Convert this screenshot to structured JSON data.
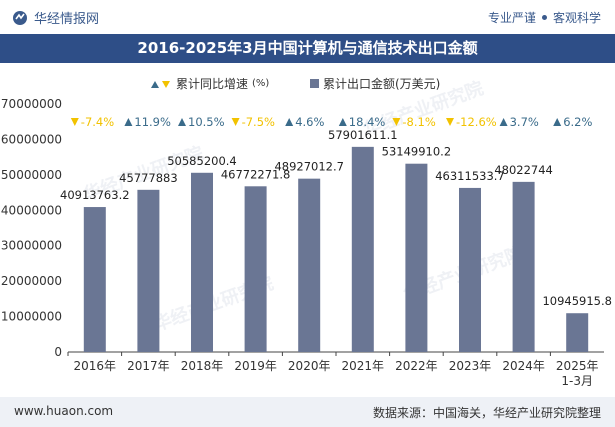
{
  "header": {
    "brand_name": "华经情报网",
    "tag_pro": "专业严谨",
    "tag_sci": "客观科学"
  },
  "title": "2016-2025年3月中国计算机与通信技术出口金额",
  "legend": {
    "growth_label": "累计同比增速",
    "growth_unit": "(%)",
    "amount_label": "累计出口金额(万美元)"
  },
  "chart_data": {
    "type": "bar",
    "title": "2016-2025年3月中国计算机与通信技术出口金额",
    "categories": [
      "2016年",
      "2017年",
      "2018年",
      "2019年",
      "2020年",
      "2021年",
      "2022年",
      "2023年",
      "2024年",
      "2025年 1-3月"
    ],
    "category_lines": [
      [
        "2016年"
      ],
      [
        "2017年"
      ],
      [
        "2018年"
      ],
      [
        "2019年"
      ],
      [
        "2020年"
      ],
      [
        "2021年"
      ],
      [
        "2022年"
      ],
      [
        "2023年"
      ],
      [
        "2024年"
      ],
      [
        "2025年",
        "1-3月"
      ]
    ],
    "series": [
      {
        "name": "累计出口金额(万美元)",
        "values": [
          40913763.2,
          45777883,
          50585200.4,
          46772271.8,
          48927012.7,
          57901611.1,
          53149910.2,
          46311533.7,
          48022744,
          10945915.8
        ],
        "labels": [
          "40913763.2",
          "45777883",
          "50585200.4",
          "46772271.8",
          "48927012.7",
          "57901611.1",
          "53149910.2",
          "46311533.7",
          "48022744",
          "10945915.8"
        ],
        "color": "#6a7694"
      },
      {
        "name": "累计同比增速(%)",
        "values": [
          -7.4,
          11.9,
          10.5,
          -7.5,
          4.6,
          18.4,
          -8.1,
          -12.6,
          3.7,
          6.2
        ],
        "labels": [
          "-7.4%",
          "11.9%",
          "10.5%",
          "-7.5%",
          "4.6%",
          "18.4%",
          "-8.1%",
          "-12.6%",
          "3.7%",
          "6.2%"
        ],
        "up_color": "#3a6b8a",
        "down_color": "#f2c200"
      }
    ],
    "yticks": [
      "70000000",
      "60000000",
      "50000000",
      "40000000",
      "30000000",
      "20000000",
      "10000000",
      "0"
    ],
    "ylim": [
      0,
      70000000
    ],
    "grid": false
  },
  "footer": {
    "website": "www.huaon.com",
    "source": "数据来源：中国海关，华经产业研究院整理"
  },
  "watermark": "华经产业研究院"
}
